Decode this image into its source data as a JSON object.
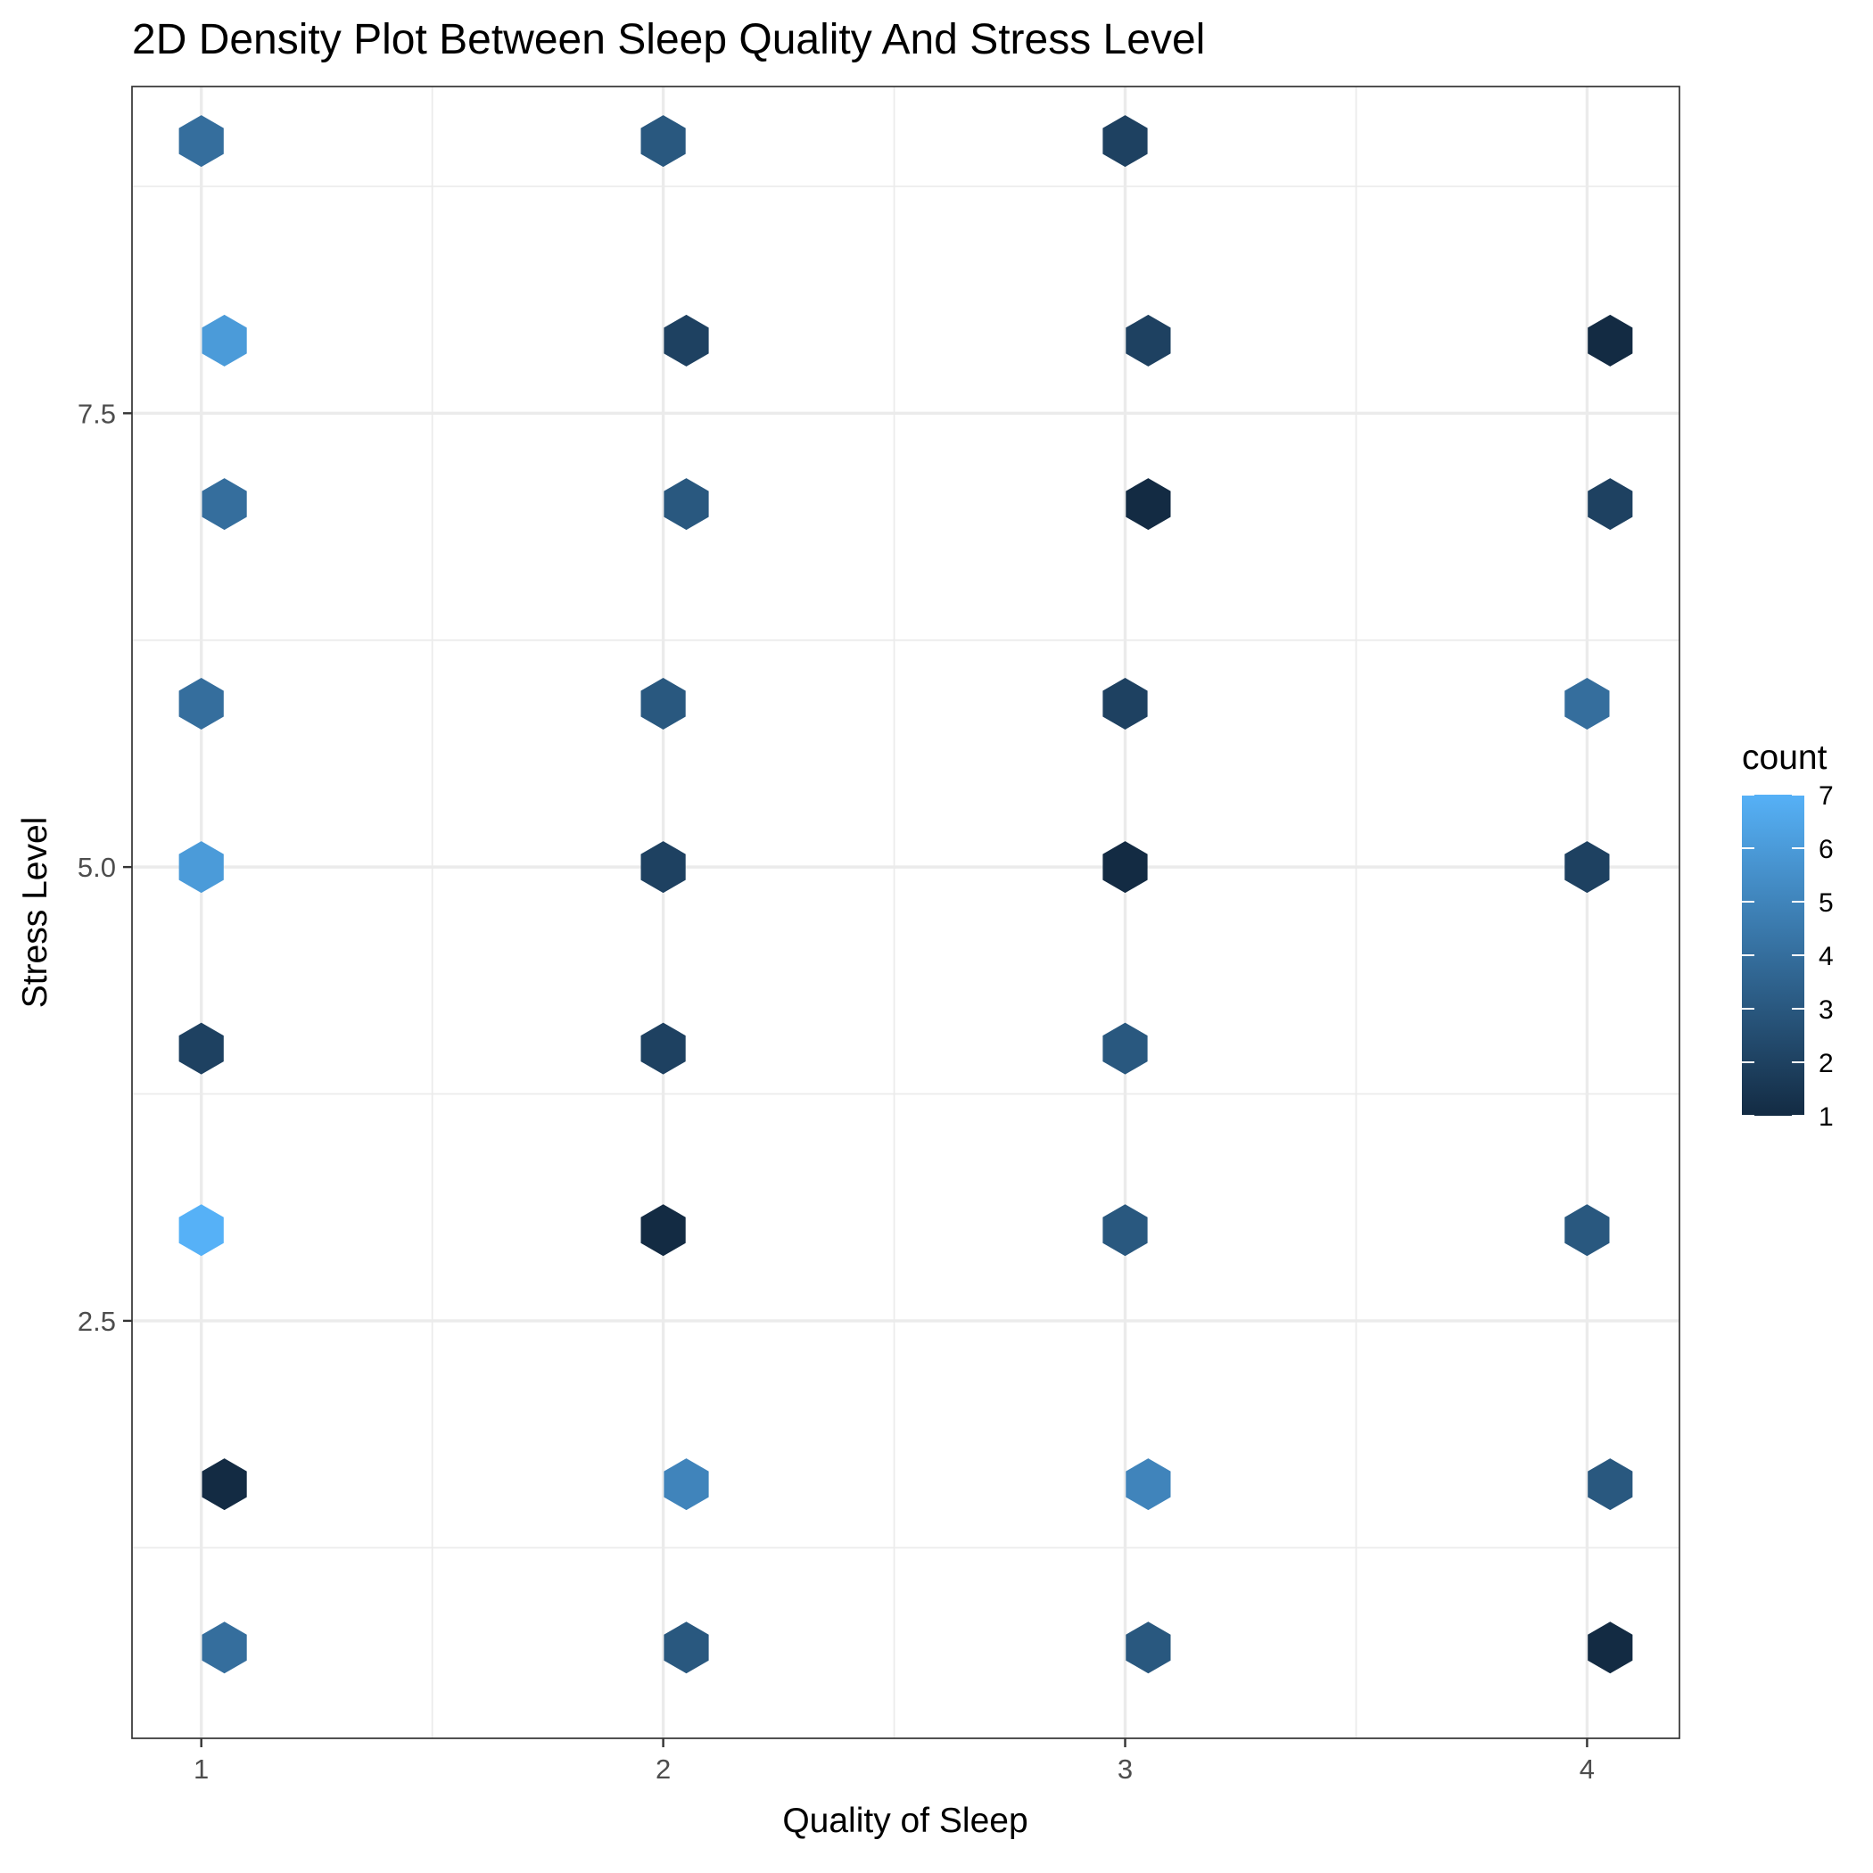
{
  "chart_data": {
    "type": "heatmap",
    "subtype": "hexbin",
    "title": "2D Density Plot Between Sleep Quality And Stress Level",
    "xlabel": "Quality of Sleep",
    "ylabel": "Stress Level",
    "xlim": [
      0.85,
      4.2
    ],
    "ylim": [
      0.2,
      9.3
    ],
    "xticks": [
      1,
      2,
      3,
      4
    ],
    "xtick_labels": [
      "1",
      "2",
      "3",
      "4"
    ],
    "yticks": [
      2.5,
      5.0,
      7.5
    ],
    "ytick_labels": [
      "2.5",
      "5.0",
      "7.5"
    ],
    "grid": true,
    "legend": {
      "title": "count",
      "position": "right",
      "min": 1,
      "max": 7,
      "ticks": [
        1,
        2,
        3,
        4,
        5,
        6,
        7
      ],
      "tick_labels": [
        "1",
        "2",
        "3",
        "4",
        "5",
        "6",
        "7"
      ],
      "color_low": "#132B43",
      "color_high": "#56B1F7"
    },
    "points": [
      {
        "x": 1.05,
        "y": 0.7,
        "count": 4
      },
      {
        "x": 2.05,
        "y": 0.7,
        "count": 3
      },
      {
        "x": 3.05,
        "y": 0.7,
        "count": 3
      },
      {
        "x": 4.05,
        "y": 0.7,
        "count": 1
      },
      {
        "x": 1.05,
        "y": 1.6,
        "count": 1
      },
      {
        "x": 2.05,
        "y": 1.6,
        "count": 5
      },
      {
        "x": 3.05,
        "y": 1.6,
        "count": 5
      },
      {
        "x": 4.05,
        "y": 1.6,
        "count": 3
      },
      {
        "x": 1.0,
        "y": 3.0,
        "count": 7
      },
      {
        "x": 2.0,
        "y": 3.0,
        "count": 1
      },
      {
        "x": 3.0,
        "y": 3.0,
        "count": 3
      },
      {
        "x": 4.0,
        "y": 3.0,
        "count": 3
      },
      {
        "x": 1.0,
        "y": 4.0,
        "count": 2
      },
      {
        "x": 2.0,
        "y": 4.0,
        "count": 2
      },
      {
        "x": 3.0,
        "y": 4.0,
        "count": 3
      },
      {
        "x": 1.0,
        "y": 5.0,
        "count": 6
      },
      {
        "x": 2.0,
        "y": 5.0,
        "count": 2
      },
      {
        "x": 3.0,
        "y": 5.0,
        "count": 1
      },
      {
        "x": 4.0,
        "y": 5.0,
        "count": 2
      },
      {
        "x": 1.0,
        "y": 5.9,
        "count": 4
      },
      {
        "x": 2.0,
        "y": 5.9,
        "count": 3
      },
      {
        "x": 3.0,
        "y": 5.9,
        "count": 2
      },
      {
        "x": 4.0,
        "y": 5.9,
        "count": 4
      },
      {
        "x": 1.05,
        "y": 7.0,
        "count": 4
      },
      {
        "x": 2.05,
        "y": 7.0,
        "count": 3
      },
      {
        "x": 3.05,
        "y": 7.0,
        "count": 1
      },
      {
        "x": 4.05,
        "y": 7.0,
        "count": 2
      },
      {
        "x": 1.05,
        "y": 7.9,
        "count": 6
      },
      {
        "x": 2.05,
        "y": 7.9,
        "count": 2
      },
      {
        "x": 3.05,
        "y": 7.9,
        "count": 2
      },
      {
        "x": 4.05,
        "y": 7.9,
        "count": 1
      },
      {
        "x": 1.0,
        "y": 9.0,
        "count": 4
      },
      {
        "x": 2.0,
        "y": 9.0,
        "count": 3
      },
      {
        "x": 3.0,
        "y": 9.0,
        "count": 2
      }
    ]
  }
}
